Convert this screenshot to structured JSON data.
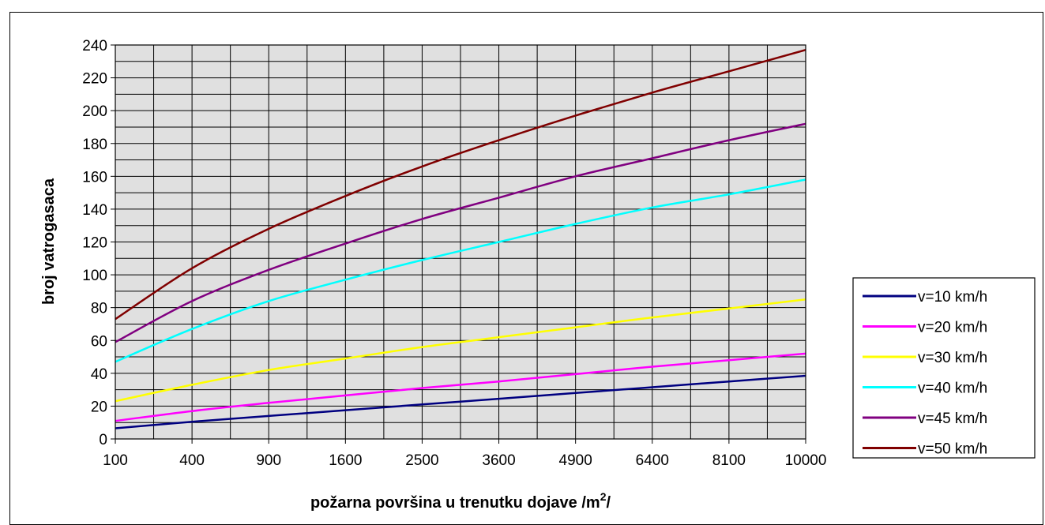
{
  "chart_data": {
    "type": "line",
    "title": "",
    "xlabel": "požarna površina u trenutku dojave /m",
    "xlabel_sup": "2",
    "xlabel_suffix": "/",
    "ylabel": "broj vatrogasaca",
    "x_scale": "sqrt",
    "x_ticks": [
      100,
      400,
      900,
      1600,
      2500,
      3600,
      4900,
      6400,
      8100,
      10000
    ],
    "x_tick_labels": [
      "100",
      "400",
      "900",
      "1600",
      "2500",
      "3600",
      "4900",
      "6400",
      "8100",
      "10000"
    ],
    "xlim": [
      100,
      10000
    ],
    "ylim": [
      0,
      240
    ],
    "y_ticks": [
      0,
      20,
      40,
      60,
      80,
      100,
      120,
      140,
      160,
      180,
      200,
      220,
      240
    ],
    "grid": true,
    "legend_position": "right",
    "plot_background": "#e0e0e0",
    "x": [
      100,
      400,
      900,
      1600,
      2500,
      3600,
      4900,
      6400,
      8100,
      10000
    ],
    "series": [
      {
        "name": "v=10 km/h",
        "color": "#000080",
        "values": [
          6.5,
          10.5,
          14,
          17.5,
          21,
          24.5,
          28,
          31.5,
          35,
          38.5
        ]
      },
      {
        "name": "v=20 km/h",
        "color": "#ff00ff",
        "values": [
          11,
          17,
          22,
          26.5,
          31,
          35,
          39.5,
          44,
          48,
          52
        ]
      },
      {
        "name": "v=30 km/h",
        "color": "#ffff00",
        "values": [
          23,
          33,
          42,
          49,
          56,
          62,
          68,
          74,
          79.5,
          85
        ]
      },
      {
        "name": "v=40 km/h",
        "color": "#00ffff",
        "values": [
          47,
          67,
          84,
          97,
          109,
          120,
          131,
          141,
          149,
          158
        ]
      },
      {
        "name": "v=45 km/h",
        "color": "#800080",
        "values": [
          59,
          84,
          103,
          119,
          134,
          147,
          160,
          171,
          182,
          192
        ]
      },
      {
        "name": "v=50 km/h",
        "color": "#800000",
        "values": [
          73,
          104,
          128,
          148,
          166,
          182,
          197,
          211,
          224,
          237
        ]
      }
    ]
  }
}
